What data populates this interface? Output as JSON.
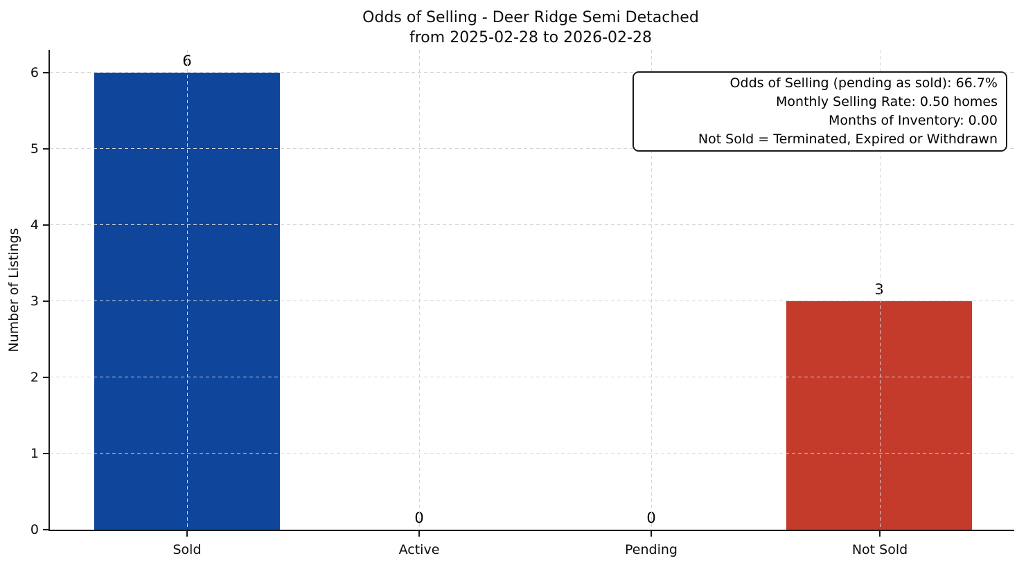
{
  "chart_data": {
    "type": "bar",
    "title": "Odds of Selling - Deer Ridge Semi Detached",
    "subtitle": "from 2025-02-28 to 2026-02-28",
    "ylabel": "Number of Listings",
    "xlabel": "",
    "categories": [
      "Sold",
      "Active",
      "Pending",
      "Not Sold"
    ],
    "values": [
      6,
      0,
      0,
      3
    ],
    "bar_colors": [
      "#0f459b",
      null,
      null,
      "#c43a2b"
    ],
    "yticks": [
      0,
      1,
      2,
      3,
      4,
      5,
      6
    ],
    "ylim": [
      0,
      6.3
    ],
    "grid": "dashed, light gray, drawn over bars",
    "legend_position": "none",
    "annotation_box": {
      "position": "top-right",
      "lines": [
        "Odds of Selling (pending as sold): 66.7%",
        "Monthly Selling Rate: 0.50 homes",
        "Months of Inventory: 0.00",
        "Not Sold = Terminated, Expired or Withdrawn"
      ]
    }
  },
  "colors": {
    "sold_bar": "#0f459b",
    "not_sold_bar": "#c43a2b",
    "grid": "#d4d4d4",
    "axis": "#1a1a1a",
    "background": "#ffffff"
  }
}
